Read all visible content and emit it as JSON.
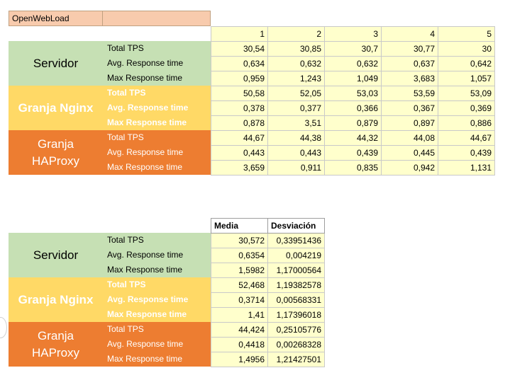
{
  "sheet_title": "OpenWebLoad",
  "top": {
    "columns": [
      "1",
      "2",
      "3",
      "4",
      "5"
    ],
    "groups": [
      {
        "name": "Servidor",
        "rows": [
          {
            "label": "Total TPS",
            "values": [
              "30,54",
              "30,85",
              "30,7",
              "30,77",
              "30"
            ]
          },
          {
            "label": "Avg. Response time",
            "values": [
              "0,634",
              "0,632",
              "0,632",
              "0,637",
              "0,642"
            ]
          },
          {
            "label": "Max Response time",
            "values": [
              "0,959",
              "1,243",
              "1,049",
              "3,683",
              "1,057"
            ]
          }
        ]
      },
      {
        "name": "Granja Nginx",
        "rows": [
          {
            "label": "Total TPS",
            "values": [
              "50,58",
              "52,05",
              "53,03",
              "53,59",
              "53,09"
            ]
          },
          {
            "label": "Avg. Response time",
            "values": [
              "0,378",
              "0,377",
              "0,366",
              "0,367",
              "0,369"
            ]
          },
          {
            "label": "Max Response time",
            "values": [
              "0,878",
              "3,51",
              "0,879",
              "0,897",
              "0,886"
            ]
          }
        ]
      },
      {
        "name": "Granja HAProxy",
        "rows": [
          {
            "label": "Total TPS",
            "values": [
              "44,67",
              "44,38",
              "44,32",
              "44,08",
              "44,67"
            ]
          },
          {
            "label": "Avg. Response time",
            "values": [
              "0,443",
              "0,443",
              "0,439",
              "0,445",
              "0,439"
            ]
          },
          {
            "label": "Max Response time",
            "values": [
              "3,659",
              "0,911",
              "0,835",
              "0,942",
              "1,131"
            ]
          }
        ]
      }
    ]
  },
  "bottom": {
    "columns": [
      "Media",
      "Desviación"
    ],
    "groups": [
      {
        "name": "Servidor",
        "rows": [
          {
            "label": "Total TPS",
            "values": [
              "30,572",
              "0,33951436"
            ]
          },
          {
            "label": "Avg. Response time",
            "values": [
              "0,6354",
              "0,004219"
            ]
          },
          {
            "label": "Max Response time",
            "values": [
              "1,5982",
              "1,17000564"
            ]
          }
        ]
      },
      {
        "name": "Granja Nginx",
        "rows": [
          {
            "label": "Total TPS",
            "values": [
              "52,468",
              "1,19382578"
            ]
          },
          {
            "label": "Avg. Response time",
            "values": [
              "0,3714",
              "0,00568331"
            ]
          },
          {
            "label": "Max Response time",
            "values": [
              "1,41",
              "1,17396018"
            ]
          }
        ]
      },
      {
        "name": "Granja HAProxy",
        "rows": [
          {
            "label": "Total TPS",
            "values": [
              "44,424",
              "0,25105776"
            ]
          },
          {
            "label": "Avg. Response time",
            "values": [
              "0,4418",
              "0,00268328"
            ]
          },
          {
            "label": "Max Response time",
            "values": [
              "1,4956",
              "1,21427501"
            ]
          }
        ]
      }
    ]
  },
  "colors": {
    "green": "#c6e0b4",
    "yellow": "#ffd966",
    "orange": "#ed7d31",
    "cell": "#ffffcc",
    "title": "#f8cbad"
  }
}
